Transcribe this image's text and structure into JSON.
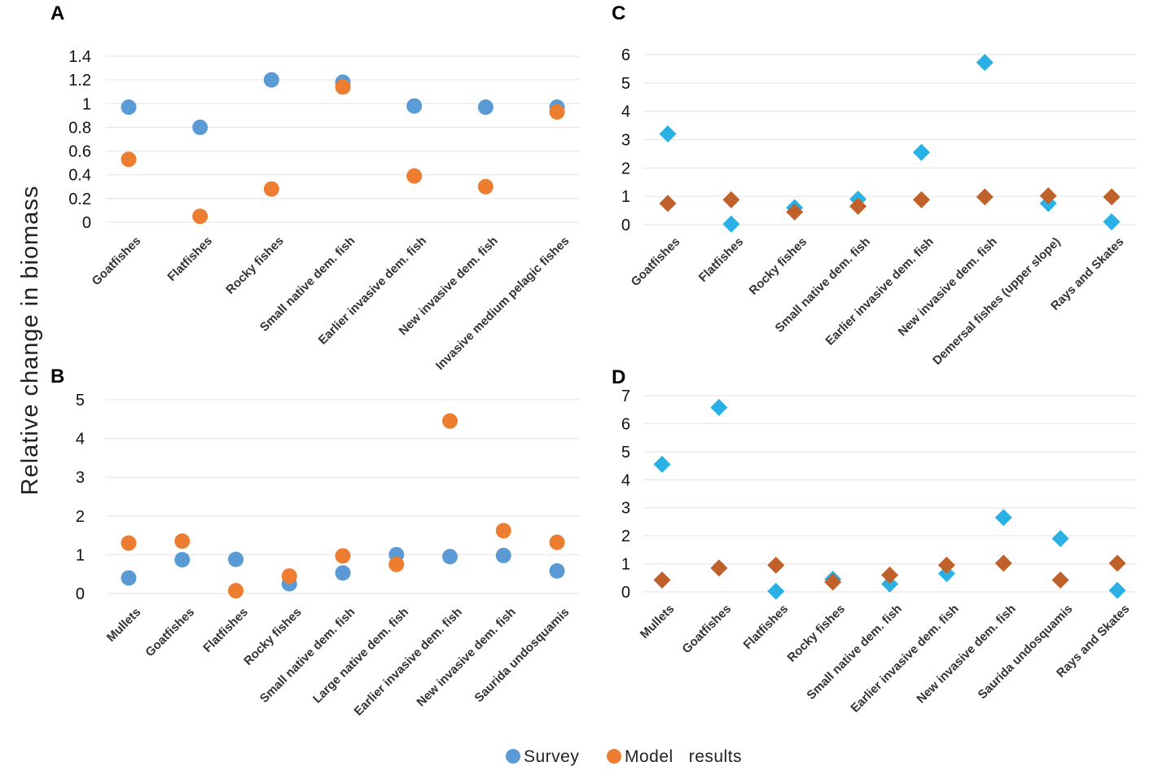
{
  "ylabel": "Relative change in biomass",
  "legend": {
    "survey_label": "Survey",
    "model_label": "Model   results"
  },
  "colors": {
    "survey_ab": "#5b9bd5",
    "model_ab": "#ed7d31",
    "survey_cd": "#29b1e5",
    "model_cd": "#c0602a"
  },
  "chart_data": [
    {
      "panel": "A",
      "type": "scatter",
      "marker": "circle",
      "ylim": [
        0,
        1.4
      ],
      "yticks": [
        "0",
        "0.2",
        "0.4",
        "0.6",
        "0.8",
        "1",
        "1.2",
        "1.4"
      ],
      "categories": [
        "Goatfishes",
        "Flatfishes",
        "Rocky fishes",
        "Small native dem. fish",
        "Earlier invasive dem. fish",
        "New invasive dem. fish",
        "Invasive medium pelagic fishes"
      ],
      "series": [
        {
          "name": "Survey",
          "values": [
            0.97,
            0.8,
            1.2,
            1.18,
            0.98,
            0.97,
            0.97
          ]
        },
        {
          "name": "Model results",
          "values": [
            0.53,
            0.05,
            0.28,
            1.14,
            0.39,
            0.3,
            0.93
          ]
        }
      ]
    },
    {
      "panel": "B",
      "type": "scatter",
      "marker": "circle",
      "ylim": [
        0,
        5
      ],
      "yticks": [
        "0",
        "1",
        "2",
        "3",
        "4",
        "5"
      ],
      "categories": [
        "Mullets",
        "Goatfishes",
        "Flatfishes",
        "Rocky fishes",
        "Small native dem. fish",
        "Large native dem. fish",
        "Earlier invasive dem. fish",
        "New invasive dem. fish",
        "Saurida undosquamis"
      ],
      "series": [
        {
          "name": "Survey",
          "values": [
            0.4,
            0.87,
            0.88,
            0.25,
            0.53,
            1.0,
            0.95,
            0.98,
            0.58
          ]
        },
        {
          "name": "Model results",
          "values": [
            1.3,
            1.35,
            0.07,
            0.45,
            0.97,
            0.75,
            4.45,
            1.62,
            1.32
          ]
        }
      ]
    },
    {
      "panel": "C",
      "type": "scatter",
      "marker": "diamond",
      "ylim": [
        0,
        6
      ],
      "yticks": [
        "0",
        "1",
        "2",
        "3",
        "4",
        "5",
        "6"
      ],
      "categories": [
        "Goatfishes",
        "Flatfishes",
        "Rocky fishes",
        "Small native dem. fish",
        "Earlier invasive dem. fish",
        "New invasive dem. fish",
        "Demersal fishes (upper slope)",
        "Rays and Skates"
      ],
      "series": [
        {
          "name": "Survey",
          "values": [
            3.2,
            0.02,
            0.6,
            0.9,
            2.55,
            5.72,
            0.75,
            0.1
          ]
        },
        {
          "name": "Model results",
          "values": [
            0.75,
            0.88,
            0.45,
            0.65,
            0.88,
            0.98,
            1.02,
            0.98
          ]
        }
      ]
    },
    {
      "panel": "D",
      "type": "scatter",
      "marker": "diamond",
      "ylim": [
        0,
        7
      ],
      "yticks": [
        "0",
        "1",
        "2",
        "3",
        "4",
        "5",
        "6",
        "7"
      ],
      "categories": [
        "Mullets",
        "Goatfishes",
        "Flatfishes",
        "Rocky fishes",
        "Small native dem. fish",
        "Earlier invasive dem. fish",
        "New invasive dem. fish",
        "Saurida undosquamis",
        "Rays and Skates"
      ],
      "series": [
        {
          "name": "Survey",
          "values": [
            4.55,
            6.58,
            0.02,
            0.45,
            0.28,
            0.65,
            2.65,
            1.9,
            0.05
          ]
        },
        {
          "name": "Model results",
          "values": [
            0.42,
            0.85,
            0.95,
            0.35,
            0.6,
            0.95,
            1.02,
            0.42,
            1.02
          ]
        }
      ]
    }
  ]
}
